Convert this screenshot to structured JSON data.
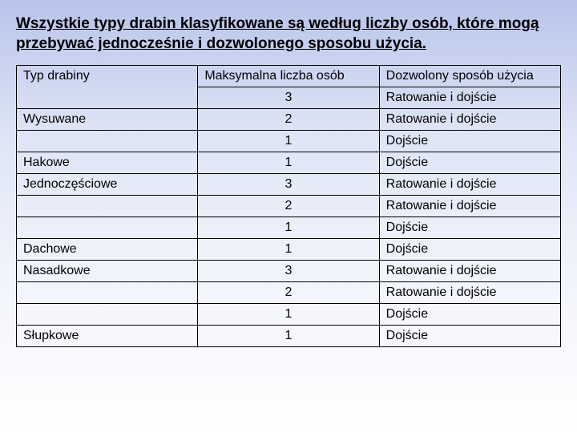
{
  "title": "Wszystkie typy drabin klasyfikowane są według liczby osób, które mogą przebywać jednocześnie i dozwolonego sposobu użycia.",
  "headers": {
    "c1": "Typ drabiny",
    "c2": "Maksymalna liczba osób",
    "c3": "Dozwolony sposób użycia"
  },
  "rows": [
    {
      "type": "",
      "num": "3",
      "use": "Ratowanie i dojście"
    },
    {
      "type": "Wysuwane",
      "num": "2",
      "use": "Ratowanie i dojście"
    },
    {
      "type": "",
      "num": "1",
      "use": "Dojście"
    },
    {
      "type": "Hakowe",
      "num": "1",
      "use": "Dojście"
    },
    {
      "type": "Jednoczęściowe",
      "num": "3",
      "use": "Ratowanie i dojście"
    },
    {
      "type": "",
      "num": "2",
      "use": "Ratowanie i dojście"
    },
    {
      "type": "",
      "num": "1",
      "use": "Dojście"
    },
    {
      "type": "Dachowe",
      "num": "1",
      "use": "Dojście"
    },
    {
      "type": "Nasadkowe",
      "num": "3",
      "use": "Ratowanie i dojście"
    },
    {
      "type": "",
      "num": "2",
      "use": "Ratowanie i dojście"
    },
    {
      "type": "",
      "num": "1",
      "use": "Dojście"
    },
    {
      "type": "Słupkowe",
      "num": "1",
      "use": "Dojście"
    }
  ]
}
